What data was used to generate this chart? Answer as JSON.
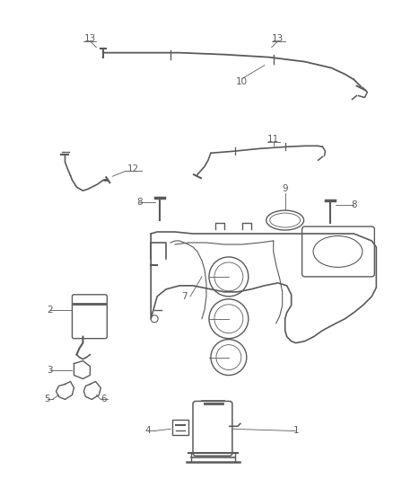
{
  "bg_color": "#ffffff",
  "line_color": "#5a5a5a",
  "fig_width": 4.38,
  "fig_height": 5.33,
  "dpi": 100
}
